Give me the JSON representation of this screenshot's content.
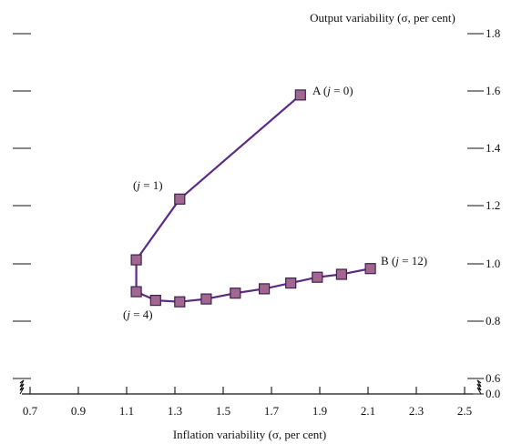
{
  "chart_data": {
    "type": "line",
    "title": "",
    "xlabel": "Inflation variability (σ, per cent)",
    "ylabel": "Output variability (σ, per cent)",
    "x_ticks": [
      "0.7",
      "0.9",
      "1.1",
      "1.3",
      "1.5",
      "1.7",
      "1.9",
      "2.1",
      "2.3",
      "2.5"
    ],
    "y_ticks": [
      "0.0",
      "0.6",
      "0.8",
      "1.0",
      "1.2",
      "1.4",
      "1.6",
      "1.8"
    ],
    "x_axis_break": true,
    "y_axis_break": true,
    "xlim": [
      0.6,
      2.6
    ],
    "ylim": [
      0.0,
      1.85
    ],
    "grid": false,
    "series": [
      {
        "points": [
          {
            "x": 1.82,
            "y": 1.58
          },
          {
            "x": 1.32,
            "y": 1.22
          },
          {
            "x": 1.14,
            "y": 1.01
          },
          {
            "x": 1.14,
            "y": 0.9
          },
          {
            "x": 1.22,
            "y": 0.87
          },
          {
            "x": 1.32,
            "y": 0.865
          },
          {
            "x": 1.43,
            "y": 0.875
          },
          {
            "x": 1.55,
            "y": 0.895
          },
          {
            "x": 1.67,
            "y": 0.91
          },
          {
            "x": 1.78,
            "y": 0.93
          },
          {
            "x": 1.89,
            "y": 0.95
          },
          {
            "x": 1.99,
            "y": 0.96
          },
          {
            "x": 2.11,
            "y": 0.98
          }
        ]
      }
    ],
    "annotations": [
      {
        "text": "A (j = 0)",
        "x": 1.82,
        "y": 1.58
      },
      {
        "text": "(j = 1)",
        "x": 1.32,
        "y": 1.22
      },
      {
        "text": "(j = 4)",
        "x": 1.14,
        "y": 0.9
      },
      {
        "text": "B (j = 12)",
        "x": 2.11,
        "y": 0.98
      }
    ],
    "colors": {
      "line": "#5b2a86",
      "marker_fill": "#a3668f",
      "marker_edge": "#3b2250",
      "axis": "#111111"
    }
  }
}
